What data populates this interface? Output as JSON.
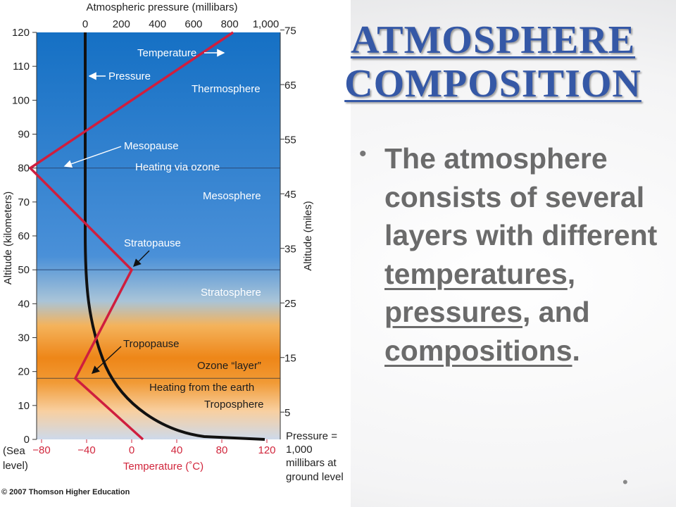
{
  "slide": {
    "title_line1": "ATMOSPHERE",
    "title_line2": "COMPOSITION",
    "bullet": {
      "intro": "The atmosphere consists of several layers with different",
      "link1": "temperatures",
      "sep1": ",",
      "link2": "pressures",
      "sep2": ", and",
      "link3": "compositions",
      "end": "."
    }
  },
  "figure": {
    "top_axis_title": "Atmospheric pressure (millibars)",
    "top_ticks": [
      "0",
      "200",
      "400",
      "600",
      "800",
      "1,000"
    ],
    "left_axis_title": "Altitude (kilometers)",
    "left_ticks": [
      "0",
      "10",
      "20",
      "30",
      "40",
      "50",
      "60",
      "70",
      "80",
      "90",
      "100",
      "110",
      "120"
    ],
    "sea_level_label": [
      "(Sea",
      "level)"
    ],
    "right_axis_title": "Altitude (miles)",
    "right_ticks": [
      "5",
      "15",
      "25",
      "35",
      "45",
      "55",
      "65",
      "75"
    ],
    "bottom_axis_title": "Temperature (˚C)",
    "bottom_ticks": [
      "−80",
      "−40",
      "0",
      "40",
      "80",
      "120"
    ],
    "pressure_note": [
      "Pressure =",
      "1,000",
      "millibars at",
      "ground level"
    ],
    "copyright": "© 2007 Thomson Higher Education",
    "labels": {
      "temperature": "Temperature",
      "pressure": "Pressure",
      "thermosphere": "Thermosphere",
      "mesopause": "Mesopause",
      "heating_ozone": "Heating via ozone",
      "mesosphere": "Mesosphere",
      "stratopause": "Stratopause",
      "stratosphere": "Stratosphere",
      "tropopause": "Tropopause",
      "ozone_layer": "Ozone “layer”",
      "heating_earth": "Heating from the earth",
      "troposphere": "Troposphere"
    },
    "temperature_profile": {
      "altitude_km": [
        0,
        18,
        50,
        80,
        120
      ],
      "temperature_c": [
        10,
        -50,
        0,
        -90,
        90
      ]
    },
    "layer_boundaries_km": [
      18,
      50,
      80
    ],
    "colors": {
      "sky_top": "#1372c4",
      "sky_mid": "#4a8fd6",
      "ozone_orange": "#ef8a1c",
      "ground_light": "#fbe2c0",
      "temperature_line": "#cf1e3e",
      "pressure_line": "#111111",
      "title": "#3558a6",
      "bullet_text": "#6b6b6b"
    }
  }
}
